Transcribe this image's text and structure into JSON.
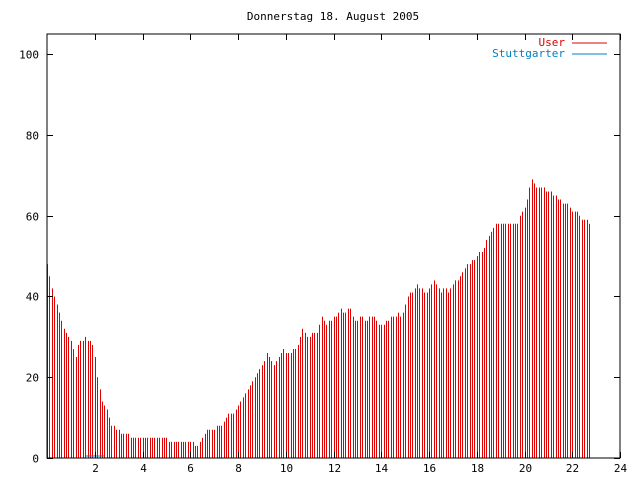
{
  "chart_data": {
    "type": "bar",
    "title": "Donnerstag 18. August 2005",
    "xlim": [
      0,
      24
    ],
    "ylim": [
      0,
      105
    ],
    "x_ticks": [
      2,
      4,
      6,
      8,
      10,
      12,
      14,
      16,
      18,
      20,
      22,
      24
    ],
    "y_ticks": [
      0,
      20,
      40,
      60,
      80,
      100
    ],
    "grid": false,
    "legend_position": "top-right",
    "legend": [
      {
        "label": "User",
        "color": "#e00000"
      },
      {
        "label": "Stuttgarter",
        "color": "#0080c0"
      }
    ],
    "series": [
      {
        "name": "User",
        "color": "#e00000",
        "x_step_hours": 0.1,
        "values": [
          48,
          45,
          42,
          40,
          38,
          36,
          34,
          32,
          31,
          30,
          29,
          27,
          25,
          28,
          29,
          29,
          30,
          29,
          29,
          28,
          25,
          20,
          17,
          14,
          13,
          12,
          10,
          8,
          8,
          7,
          7,
          6,
          6,
          6,
          6,
          5,
          5,
          5,
          5,
          5,
          5,
          5,
          5,
          5,
          5,
          5,
          5,
          5,
          5,
          5,
          5,
          4,
          4,
          4,
          4,
          4,
          4,
          4,
          4,
          4,
          4,
          4,
          3,
          3,
          4,
          5,
          6,
          7,
          7,
          7,
          7,
          8,
          8,
          8,
          9,
          10,
          11,
          11,
          11,
          12,
          13,
          14,
          15,
          16,
          17,
          18,
          19,
          20,
          21,
          22,
          23,
          24,
          26,
          25,
          24,
          23,
          24,
          25,
          26,
          27,
          26,
          26,
          26,
          27,
          27,
          28,
          30,
          32,
          31,
          30,
          30,
          31,
          31,
          31,
          33,
          35,
          34,
          33,
          34,
          34,
          35,
          35,
          36,
          37,
          36,
          36,
          37,
          37,
          35,
          34,
          34,
          35,
          35,
          34,
          34,
          35,
          35,
          35,
          34,
          33,
          33,
          33,
          34,
          34,
          35,
          35,
          35,
          36,
          35,
          36,
          38,
          40,
          41,
          41,
          42,
          43,
          42,
          42,
          41,
          41,
          42,
          43,
          44,
          43,
          42,
          41,
          42,
          42,
          41,
          42,
          43,
          44,
          44,
          45,
          46,
          47,
          48,
          48,
          49,
          49,
          50,
          51,
          51,
          52,
          54,
          55,
          56,
          57,
          58,
          58,
          58,
          58,
          58,
          58,
          58,
          58,
          58,
          58,
          60,
          61,
          62,
          64,
          67,
          69,
          68,
          67,
          67,
          67,
          67,
          66,
          66,
          66,
          65,
          65,
          64,
          64,
          63,
          63,
          63,
          62,
          61,
          61,
          61,
          60,
          59,
          59,
          59,
          58
        ]
      },
      {
        "name": "Stuttgarter",
        "color": "#0080c0",
        "segments": [
          [
            1.6,
            2.4,
            0.5
          ]
        ]
      }
    ]
  }
}
